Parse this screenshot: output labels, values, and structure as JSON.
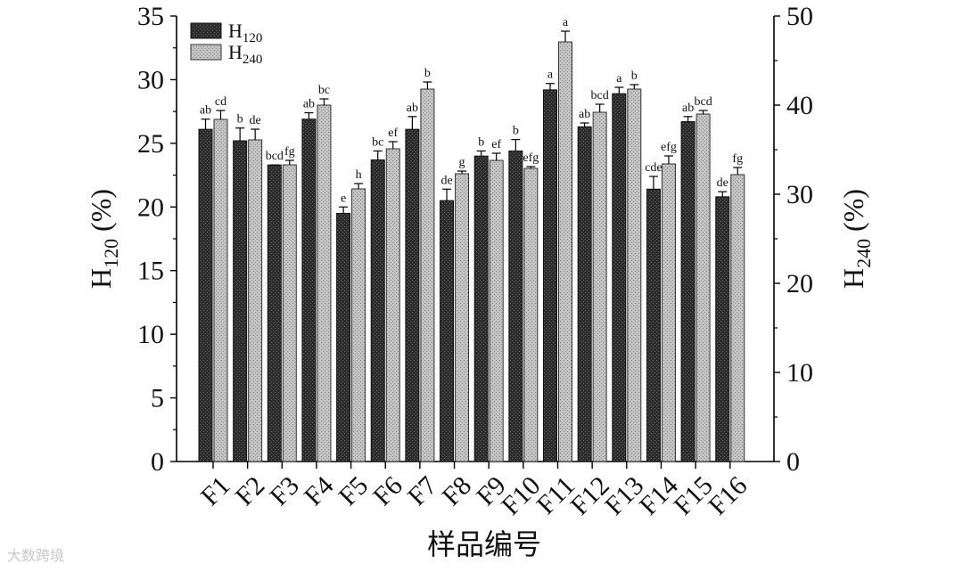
{
  "chart_data": {
    "type": "bar",
    "xlabel": "样品编号",
    "ylabel": "H120 (%)",
    "ylabel2": "H240 (%)",
    "ylim": [
      0,
      35
    ],
    "y2lim": [
      0,
      50
    ],
    "ticks_left": [
      "0",
      "5",
      "10",
      "15",
      "20",
      "25",
      "30",
      "35"
    ],
    "ticks_right": [
      "0",
      "10",
      "20",
      "30",
      "40",
      "50"
    ],
    "categories": [
      "F1",
      "F2",
      "F3",
      "F4",
      "F5",
      "F6",
      "F7",
      "F8",
      "F9",
      "F10",
      "F11",
      "F12",
      "F13",
      "F14",
      "F15",
      "F16"
    ],
    "legend_position": "top-left",
    "series": [
      {
        "name": "H120",
        "axis": "left",
        "color": "#2a2a2a",
        "values": [
          26.1,
          25.2,
          23.3,
          26.9,
          19.5,
          23.7,
          26.1,
          20.5,
          24.0,
          24.4,
          29.2,
          26.3,
          28.9,
          21.4,
          26.7,
          20.8
        ],
        "errors": [
          0.8,
          1.0,
          0.0,
          0.5,
          0.5,
          0.7,
          1.0,
          0.9,
          0.4,
          0.9,
          0.5,
          0.3,
          0.5,
          1.0,
          0.4,
          0.4
        ],
        "sig_labels": [
          "ab",
          "b",
          "bcd",
          "ab",
          "e",
          "bc",
          "ab",
          "de",
          "b",
          "b",
          "a",
          "ab",
          "a",
          "cde",
          "ab",
          "de"
        ]
      },
      {
        "name": "H240",
        "axis": "right",
        "color": "#b4b4b4",
        "values": [
          38.4,
          36.1,
          33.3,
          40.0,
          30.6,
          35.1,
          41.8,
          32.3,
          33.8,
          32.9,
          47.1,
          39.2,
          41.8,
          33.4,
          39.0,
          32.2
        ],
        "errors": [
          1.0,
          1.2,
          0.5,
          0.7,
          0.6,
          0.8,
          0.8,
          0.3,
          0.8,
          0.2,
          1.2,
          0.9,
          0.5,
          0.9,
          0.4,
          0.8
        ],
        "sig_labels": [
          "cd",
          "de",
          "fg",
          "bc",
          "h",
          "ef",
          "b",
          "g",
          "ef",
          "efg",
          "a",
          "bcd",
          "b",
          "efg",
          "bcd",
          "fg"
        ]
      }
    ]
  },
  "watermark": "大数跨境"
}
